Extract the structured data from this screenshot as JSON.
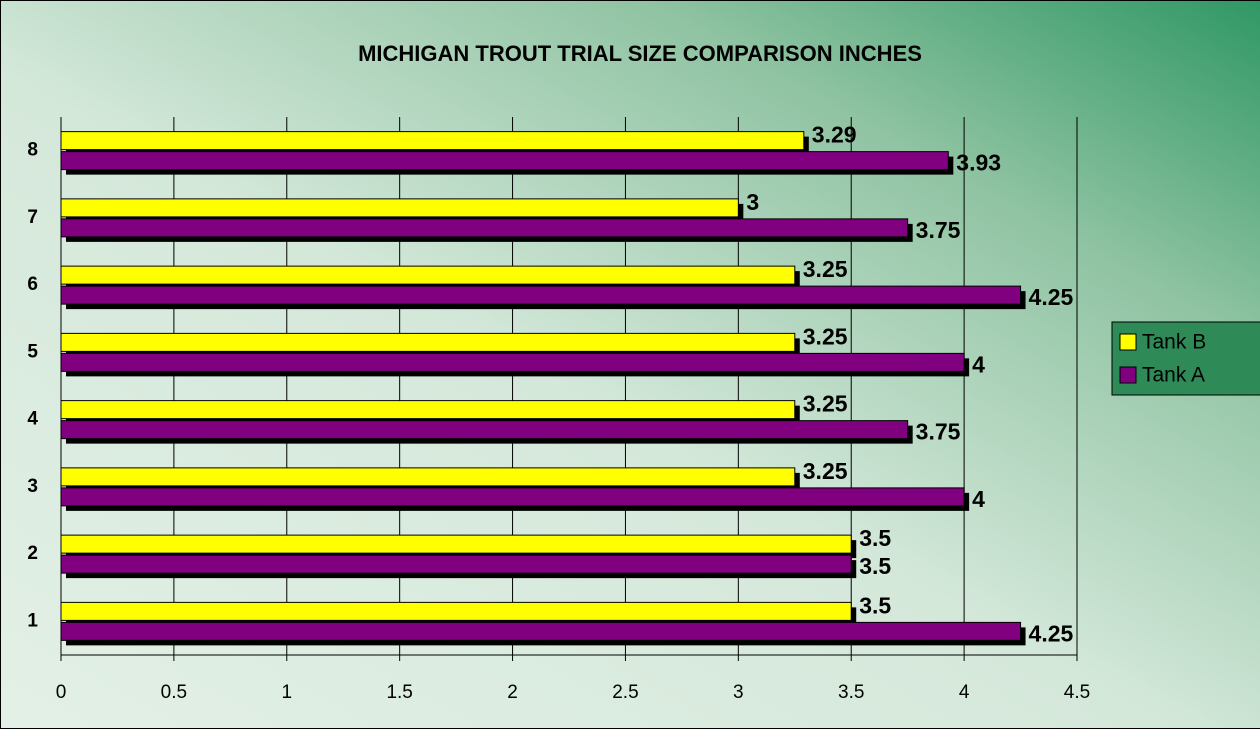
{
  "chart_data": {
    "type": "hbar",
    "title": "MICHIGAN TROUT TRIAL SIZE COMPARISON INCHES",
    "categories": [
      "1",
      "2",
      "3",
      "4",
      "5",
      "6",
      "7",
      "8"
    ],
    "series": [
      {
        "name": "Tank B",
        "color": "#ffff00",
        "values": [
          3.5,
          3.5,
          3.25,
          3.25,
          3.25,
          3.25,
          3,
          3.29
        ]
      },
      {
        "name": "Tank A",
        "color": "#800080",
        "values": [
          4.25,
          3.5,
          4,
          3.75,
          4,
          4.25,
          3.75,
          3.93
        ]
      }
    ],
    "xlim": [
      0,
      4.5
    ],
    "xticks": [
      0,
      0.5,
      1,
      1.5,
      2,
      2.5,
      3,
      3.5,
      4,
      4.5
    ],
    "grid": true,
    "legend": "right"
  }
}
